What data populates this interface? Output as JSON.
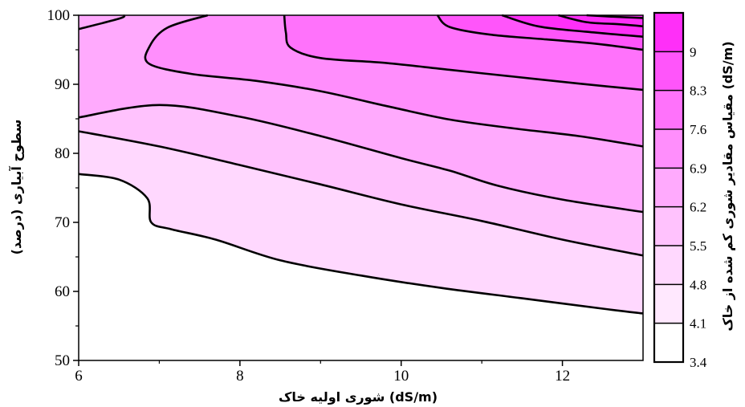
{
  "chart_data": {
    "type": "contour",
    "xlabel": "شوری اولیه خاک (dS/m)",
    "ylabel": "سطوح آبیاری (درصد)",
    "colorbar_label": "مقیاس مقادیر شوری کم شده از خاک (dS/m)",
    "xlim": [
      6,
      13
    ],
    "ylim": [
      50,
      100
    ],
    "x_ticks": [
      6,
      8,
      10,
      12
    ],
    "y_ticks": [
      50,
      60,
      70,
      80,
      90,
      100
    ],
    "grid": false,
    "levels": [
      3.4,
      4.1,
      4.8,
      5.5,
      6.2,
      6.9,
      7.6,
      8.3,
      9
    ],
    "level_colors": [
      "#ffffff",
      "#ffe8fe",
      "#ffd8fe",
      "#ffc2fd",
      "#ffaafd",
      "#ff8efc",
      "#ff72fb",
      "#ff55fa",
      "#ff2ff8"
    ],
    "contours": [
      {
        "level": 4.1,
        "points": [
          [
            6,
            77
          ],
          [
            6.5,
            76.2
          ],
          [
            6.85,
            73.5
          ],
          [
            6.9,
            70
          ],
          [
            7.15,
            69
          ],
          [
            7.7,
            67.5
          ],
          [
            8.5,
            64.5
          ],
          [
            9.5,
            62.3
          ],
          [
            10.5,
            60.5
          ],
          [
            11.5,
            59
          ],
          [
            12.5,
            57.5
          ],
          [
            13,
            56.8
          ]
        ]
      },
      {
        "level": 4.8,
        "points": [
          [
            6,
            83.2
          ],
          [
            7,
            81
          ],
          [
            8,
            78.3
          ],
          [
            9,
            75.5
          ],
          [
            10,
            72.6
          ],
          [
            11,
            70.2
          ],
          [
            12,
            67.5
          ],
          [
            13,
            65.2
          ]
        ]
      },
      {
        "level": 5.5,
        "points": [
          [
            6,
            98
          ],
          [
            6.5,
            99.5
          ],
          [
            6.57,
            100
          ]
        ]
      },
      {
        "level": 5.5,
        "points": [
          [
            6,
            85.2
          ],
          [
            7,
            87
          ],
          [
            8,
            85.3
          ],
          [
            9,
            82.5
          ],
          [
            10,
            79.3
          ],
          [
            10.6,
            77.5
          ],
          [
            11.2,
            75.3
          ],
          [
            12,
            73.3
          ],
          [
            13,
            71.5
          ]
        ]
      },
      {
        "level": 6.2,
        "points": [
          [
            7.6,
            100
          ],
          [
            7.1,
            98.2
          ],
          [
            6.88,
            95.5
          ],
          [
            6.87,
            93
          ],
          [
            7.4,
            91.5
          ],
          [
            8.2,
            90.5
          ],
          [
            9,
            89
          ],
          [
            9.8,
            86.9
          ],
          [
            10.6,
            84.9
          ],
          [
            11.4,
            83.6
          ],
          [
            12.2,
            82.5
          ],
          [
            13,
            81
          ]
        ]
      },
      {
        "level": 6.9,
        "points": [
          [
            8.55,
            100
          ],
          [
            8.57,
            97.5
          ],
          [
            8.63,
            95.3
          ],
          [
            9,
            93.8
          ],
          [
            9.8,
            93.1
          ],
          [
            10.6,
            92.1
          ],
          [
            11.4,
            91.1
          ],
          [
            12.2,
            90.1
          ],
          [
            13,
            89.2
          ]
        ]
      },
      {
        "level": 7.6,
        "points": [
          [
            10.45,
            100
          ],
          [
            10.6,
            98.3
          ],
          [
            11.1,
            97.2
          ],
          [
            11.8,
            96.5
          ],
          [
            12.4,
            95.9
          ],
          [
            13,
            95
          ]
        ]
      },
      {
        "level": 8.3,
        "points": [
          [
            11.25,
            100
          ],
          [
            11.7,
            98.4
          ],
          [
            12.3,
            97.6
          ],
          [
            13,
            96.9
          ]
        ]
      },
      {
        "level": 9.0,
        "points": [
          [
            11.95,
            100
          ],
          [
            12.3,
            99
          ],
          [
            12.7,
            98.7
          ],
          [
            13,
            98.4
          ]
        ]
      },
      {
        "level": 9.7,
        "points": [
          [
            12.3,
            100
          ],
          [
            12.6,
            99.8
          ],
          [
            13,
            99.6
          ]
        ]
      }
    ]
  }
}
